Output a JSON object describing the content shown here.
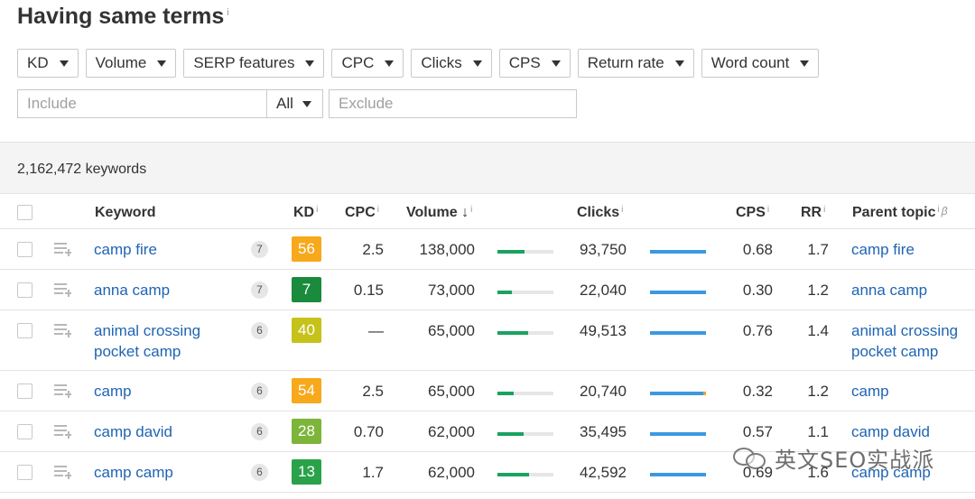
{
  "page": {
    "title": "Having same terms",
    "title_info": "i"
  },
  "filters": [
    {
      "label": "KD"
    },
    {
      "label": "Volume"
    },
    {
      "label": "SERP features"
    },
    {
      "label": "CPC"
    },
    {
      "label": "Clicks"
    },
    {
      "label": "CPS"
    },
    {
      "label": "Return rate"
    },
    {
      "label": "Word count"
    }
  ],
  "search": {
    "include_placeholder": "Include",
    "match_mode": "All",
    "exclude_placeholder": "Exclude"
  },
  "summary": {
    "count_text": "2,162,472 keywords"
  },
  "columns": {
    "keyword": "Keyword",
    "kd": "KD",
    "cpc": "CPC",
    "volume": "Volume",
    "sort_arrow": "↓",
    "clicks": "Clicks",
    "cps": "CPS",
    "rr": "RR",
    "parent_topic": "Parent topic",
    "info": "i",
    "beta": "β"
  },
  "rows": [
    {
      "keyword": "camp fire",
      "serp_features": "7",
      "kd": "56",
      "kd_color": "#f7a81b",
      "cpc": "2.5",
      "volume": "138,000",
      "volume_fraction": 0.48,
      "clicks": "93,750",
      "clicks_alt_fraction": 0.0,
      "cps": "0.68",
      "rr": "1.7",
      "parent_topic": "camp fire"
    },
    {
      "keyword": "anna camp",
      "serp_features": "7",
      "kd": "7",
      "kd_color": "#1a8a3c",
      "cpc": "0.15",
      "volume": "73,000",
      "volume_fraction": 0.26,
      "clicks": "22,040",
      "clicks_alt_fraction": 0.0,
      "cps": "0.30",
      "rr": "1.2",
      "parent_topic": "anna camp"
    },
    {
      "keyword": "animal crossing pocket camp",
      "serp_features": "6",
      "kd": "40",
      "kd_color": "#c5c21a",
      "cpc": "—",
      "volume": "65,000",
      "volume_fraction": 0.55,
      "clicks": "49,513",
      "clicks_alt_fraction": 0.0,
      "cps": "0.76",
      "rr": "1.4",
      "parent_topic": "animal crossing pocket camp"
    },
    {
      "keyword": "camp",
      "serp_features": "6",
      "kd": "54",
      "kd_color": "#f7a81b",
      "cpc": "2.5",
      "volume": "65,000",
      "volume_fraction": 0.29,
      "clicks": "20,740",
      "clicks_alt_fraction": 0.05,
      "cps": "0.32",
      "rr": "1.2",
      "parent_topic": "camp"
    },
    {
      "keyword": "camp david",
      "serp_features": "6",
      "kd": "28",
      "kd_color": "#7cb53a",
      "cpc": "0.70",
      "volume": "62,000",
      "volume_fraction": 0.47,
      "clicks": "35,495",
      "clicks_alt_fraction": 0.0,
      "cps": "0.57",
      "rr": "1.1",
      "parent_topic": "camp david"
    },
    {
      "keyword": "camp camp",
      "serp_features": "6",
      "kd": "13",
      "kd_color": "#2aa24a",
      "cpc": "1.7",
      "volume": "62,000",
      "volume_fraction": 0.56,
      "clicks": "42,592",
      "clicks_alt_fraction": 0.0,
      "cps": "0.69",
      "rr": "1.6",
      "parent_topic": "camp camp"
    }
  ],
  "watermark": {
    "text": "英文SEO实战派",
    "icon": "wechat-icon"
  }
}
